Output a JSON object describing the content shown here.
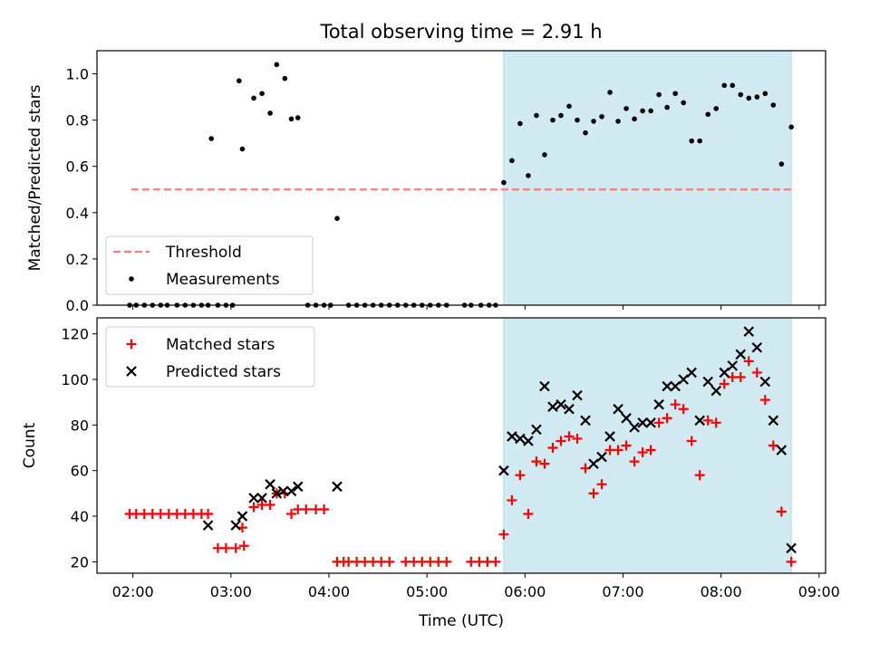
{
  "figure": {
    "title": "Total observing time = 2.91 h",
    "xlabel": "Time (UTC)"
  },
  "colors": {
    "highlight": "#add8e6",
    "threshold": "#f08080",
    "matched": "#ff0000",
    "predicted": "#000000"
  },
  "chart_data": [
    {
      "type": "scatter",
      "ylabel": "Matched/Predicted stars",
      "xlim": [
        "01:38",
        "09:04"
      ],
      "ylim": [
        0,
        1.1
      ],
      "x_ticks": [
        "02:00",
        "03:00",
        "04:00",
        "05:00",
        "06:00",
        "07:00",
        "08:00",
        "09:00"
      ],
      "y_ticks": [
        "0.0",
        "0.2",
        "0.4",
        "0.6",
        "0.8",
        "1.0"
      ],
      "legend": {
        "placement": "lower-left",
        "entries": [
          "Threshold",
          "Measurements"
        ]
      },
      "shaded_span": [
        "05:47",
        "08:43"
      ],
      "threshold": {
        "name": "Threshold",
        "y": 0.5,
        "x_start": "01:59",
        "x_end": "08:43"
      },
      "series": [
        {
          "name": "Measurements",
          "x": [
            "01:58",
            "02:02",
            "02:07",
            "02:12",
            "02:17",
            "02:21",
            "02:27",
            "02:32",
            "02:37",
            "02:42",
            "02:46",
            "02:48",
            "02:52",
            "02:57",
            "03:01",
            "03:05",
            "03:07",
            "03:14",
            "03:19",
            "03:24",
            "03:28",
            "03:33",
            "03:37",
            "03:41",
            "03:47",
            "03:52",
            "03:57",
            "04:01",
            "04:05",
            "04:12",
            "04:17",
            "04:22",
            "04:27",
            "04:32",
            "04:37",
            "04:42",
            "04:47",
            "04:52",
            "04:57",
            "05:02",
            "05:07",
            "05:12",
            "05:23",
            "05:27",
            "05:33",
            "05:38",
            "05:42",
            "05:47",
            "05:52",
            "05:57",
            "06:02",
            "06:07",
            "06:12",
            "06:17",
            "06:22",
            "06:27",
            "06:32",
            "06:37",
            "06:42",
            "06:47",
            "06:52",
            "06:57",
            "07:02",
            "07:07",
            "07:12",
            "07:17",
            "07:22",
            "07:27",
            "07:32",
            "07:37",
            "07:42",
            "07:47",
            "07:52",
            "07:57",
            "08:02",
            "08:07",
            "08:12",
            "08:17",
            "08:22",
            "08:27",
            "08:32",
            "08:37",
            "08:43"
          ],
          "y": [
            0,
            0,
            0,
            0,
            0,
            0,
            0,
            0,
            0,
            0,
            0,
            0.72,
            0,
            0,
            0,
            0.97,
            0.675,
            0.895,
            0.915,
            0.83,
            1.04,
            0.98,
            0.805,
            0.81,
            0,
            0,
            0,
            0,
            0.375,
            0,
            0,
            0,
            0,
            0,
            0,
            0,
            0,
            0,
            0,
            0,
            0,
            0,
            0,
            0,
            0,
            0,
            0,
            0.53,
            0.625,
            0.785,
            0.56,
            0.82,
            0.65,
            0.8,
            0.82,
            0.86,
            0.8,
            0.745,
            0.795,
            0.815,
            0.92,
            0.795,
            0.85,
            0.805,
            0.84,
            0.84,
            0.91,
            0.855,
            0.915,
            0.875,
            0.71,
            0.71,
            0.825,
            0.85,
            0.95,
            0.95,
            0.91,
            0.895,
            0.9,
            0.915,
            0.865,
            0.61,
            0.77
          ]
        }
      ]
    },
    {
      "type": "scatter",
      "ylabel": "Count",
      "xlim": [
        "01:38",
        "09:04"
      ],
      "ylim": [
        15,
        127
      ],
      "x_ticks": [
        "02:00",
        "03:00",
        "04:00",
        "05:00",
        "06:00",
        "07:00",
        "08:00",
        "09:00"
      ],
      "y_ticks": [
        "20",
        "40",
        "60",
        "80",
        "100",
        "120"
      ],
      "legend": {
        "placement": "upper-left",
        "entries": [
          "Matched stars",
          "Predicted stars"
        ]
      },
      "shaded_span": [
        "05:47",
        "08:43"
      ],
      "series": [
        {
          "name": "Matched stars",
          "x": [
            "01:58",
            "02:02",
            "02:07",
            "02:12",
            "02:17",
            "02:22",
            "02:27",
            "02:32",
            "02:37",
            "02:42",
            "02:46",
            "02:52",
            "02:57",
            "03:03",
            "03:07",
            "03:08",
            "03:14",
            "03:19",
            "03:24",
            "03:28",
            "03:33",
            "03:37",
            "03:41",
            "03:46",
            "03:52",
            "03:57",
            "04:05",
            "04:09",
            "04:12",
            "04:17",
            "04:22",
            "04:27",
            "04:32",
            "04:37",
            "04:47",
            "04:52",
            "04:57",
            "05:02",
            "05:07",
            "05:12",
            "05:27",
            "05:32",
            "05:37",
            "05:42",
            "05:47",
            "05:52",
            "05:57",
            "06:02",
            "06:07",
            "06:12",
            "06:17",
            "06:22",
            "06:27",
            "06:32",
            "06:37",
            "06:42",
            "06:47",
            "06:52",
            "06:57",
            "07:02",
            "07:07",
            "07:12",
            "07:17",
            "07:22",
            "07:27",
            "07:32",
            "07:37",
            "07:42",
            "07:47",
            "07:52",
            "07:57",
            "08:02",
            "08:07",
            "08:12",
            "08:17",
            "08:22",
            "08:27",
            "08:32",
            "08:37",
            "08:43"
          ],
          "y": [
            41,
            41,
            41,
            41,
            41,
            41,
            41,
            41,
            41,
            41,
            41,
            26,
            26,
            26,
            35,
            27,
            44,
            45,
            45,
            50,
            50,
            41,
            43,
            43,
            43,
            43,
            20,
            20,
            20,
            20,
            20,
            20,
            20,
            20,
            20,
            20,
            20,
            20,
            20,
            20,
            20,
            20,
            20,
            20,
            32,
            47,
            58,
            41,
            64,
            63,
            70,
            73,
            75,
            74,
            61,
            50,
            54,
            69,
            69,
            71,
            64,
            68,
            69,
            81,
            83,
            89,
            87,
            73,
            58,
            82,
            81,
            98,
            101,
            101,
            108,
            103,
            91,
            71,
            42,
            20
          ]
        },
        {
          "name": "Predicted stars",
          "x": [
            "02:46",
            "03:03",
            "03:07",
            "03:14",
            "03:19",
            "03:24",
            "03:28",
            "03:32",
            "03:37",
            "03:41",
            "04:05",
            "05:47",
            "05:52",
            "05:57",
            "06:02",
            "06:07",
            "06:12",
            "06:17",
            "06:22",
            "06:27",
            "06:32",
            "06:37",
            "06:42",
            "06:47",
            "06:52",
            "06:57",
            "07:02",
            "07:07",
            "07:12",
            "07:17",
            "07:22",
            "07:27",
            "07:32",
            "07:37",
            "07:42",
            "07:47",
            "07:52",
            "07:57",
            "08:02",
            "08:07",
            "08:12",
            "08:17",
            "08:22",
            "08:27",
            "08:32",
            "08:37",
            "08:43"
          ],
          "y": [
            36,
            36,
            40,
            48,
            48,
            54,
            50,
            51,
            51,
            53,
            53,
            60,
            75,
            74,
            73,
            78,
            97,
            88,
            89,
            87,
            93,
            82,
            63,
            66,
            75,
            87,
            83,
            79,
            81,
            81,
            89,
            97,
            97,
            100,
            103,
            82,
            99,
            95,
            103,
            106,
            111,
            121,
            114,
            99,
            82,
            69,
            26
          ]
        }
      ]
    }
  ]
}
